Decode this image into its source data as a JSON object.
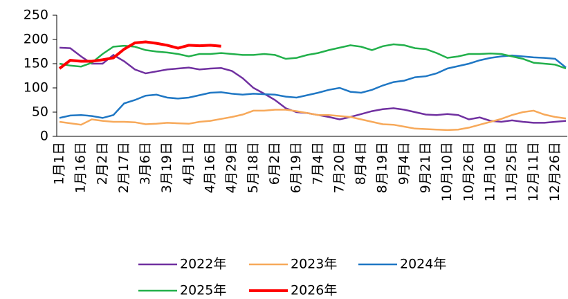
{
  "chart_data": {
    "type": "line",
    "categories": [
      "1月1日",
      null,
      "1月16日",
      null,
      "2月2日",
      null,
      "2月17日",
      null,
      "3月6日",
      null,
      "3月19日",
      null,
      "4月1日",
      null,
      "4月16日",
      null,
      "4月29日",
      null,
      "5月18日",
      null,
      "6月2日",
      null,
      "6月19日",
      null,
      "7月4日",
      null,
      "7月20日",
      null,
      "8月4日",
      null,
      "8月19日",
      null,
      "9月4日",
      null,
      "9月21日",
      null,
      "10月10日",
      null,
      "10月26日",
      null,
      "11月10日",
      null,
      "11月25日",
      null,
      "12月11日",
      null,
      "12月26日",
      null
    ],
    "series": [
      {
        "name": "2022年",
        "color": "#7030a0",
        "values": [
          183,
          182,
          165,
          150,
          150,
          168,
          155,
          138,
          130,
          134,
          138,
          140,
          142,
          138,
          140,
          141,
          135,
          120,
          100,
          88,
          75,
          58,
          50,
          48,
          44,
          40,
          35,
          40,
          46,
          52,
          56,
          58,
          55,
          50,
          45,
          44,
          46,
          44,
          35,
          39,
          32,
          30,
          33,
          30,
          28,
          28,
          30,
          32
        ]
      },
      {
        "name": "2023年",
        "color": "#f7a95a",
        "values": [
          30,
          27,
          24,
          35,
          32,
          30,
          30,
          29,
          25,
          26,
          28,
          27,
          26,
          30,
          32,
          36,
          40,
          45,
          53,
          53,
          55,
          55,
          52,
          48,
          44,
          44,
          42,
          40,
          35,
          30,
          25,
          24,
          20,
          16,
          15,
          14,
          13,
          14,
          18,
          24,
          30,
          36,
          44,
          50,
          53,
          45,
          40,
          37
        ]
      },
      {
        "name": "2024年",
        "color": "#1f77c4",
        "values": [
          38,
          43,
          44,
          42,
          38,
          44,
          68,
          75,
          84,
          86,
          80,
          78,
          80,
          85,
          90,
          91,
          88,
          86,
          88,
          87,
          86,
          82,
          80,
          85,
          90,
          96,
          100,
          92,
          90,
          96,
          105,
          112,
          115,
          122,
          124,
          130,
          140,
          145,
          150,
          157,
          162,
          165,
          167,
          165,
          163,
          162,
          160,
          142
        ]
      },
      {
        "name": "2025年",
        "color": "#22b04b",
        "values": [
          150,
          146,
          144,
          152,
          170,
          185,
          187,
          185,
          178,
          175,
          173,
          170,
          165,
          170,
          170,
          172,
          170,
          168,
          168,
          170,
          168,
          160,
          162,
          168,
          172,
          178,
          183,
          188,
          185,
          178,
          186,
          190,
          188,
          182,
          180,
          172,
          162,
          165,
          170,
          170,
          171,
          170,
          165,
          160,
          152,
          150,
          148,
          140
        ]
      },
      {
        "name": "2026年",
        "color": "#ff0000",
        "values": [
          140,
          157,
          155,
          155,
          158,
          162,
          180,
          193,
          195,
          192,
          188,
          182,
          188,
          187,
          188,
          186,
          null,
          null,
          null,
          null,
          null,
          null,
          null,
          null,
          null,
          null,
          null,
          null,
          null,
          null,
          null,
          null,
          null,
          null,
          null,
          null,
          null,
          null,
          null,
          null,
          null,
          null,
          null,
          null,
          null,
          null,
          null,
          null
        ]
      }
    ],
    "ylim": [
      0,
      250
    ],
    "yticks": [
      0,
      50,
      100,
      150,
      200,
      250
    ]
  }
}
